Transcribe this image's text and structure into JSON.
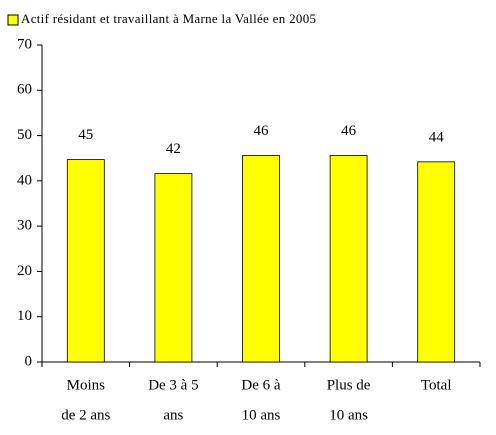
{
  "chart_data": {
    "type": "bar",
    "categories": [
      [
        "Moins",
        "de 2 ans"
      ],
      [
        "De 3 à 5",
        "ans"
      ],
      [
        "De 6 à",
        "10 ans"
      ],
      [
        "Plus de",
        "10 ans"
      ],
      [
        "Total"
      ]
    ],
    "series": [
      {
        "name": "Actif résidant et travaillant à Marne la Vallée en 2005",
        "color": "#ffff00",
        "values": [
          44.7,
          41.6,
          45.6,
          45.6,
          44.2
        ],
        "value_labels": [
          "45",
          "42",
          "46",
          "46",
          "44"
        ]
      }
    ],
    "ylim": [
      0,
      70
    ],
    "yticks": [
      0,
      10,
      20,
      30,
      40,
      50,
      60,
      70
    ],
    "grid": false,
    "legend": "top"
  }
}
